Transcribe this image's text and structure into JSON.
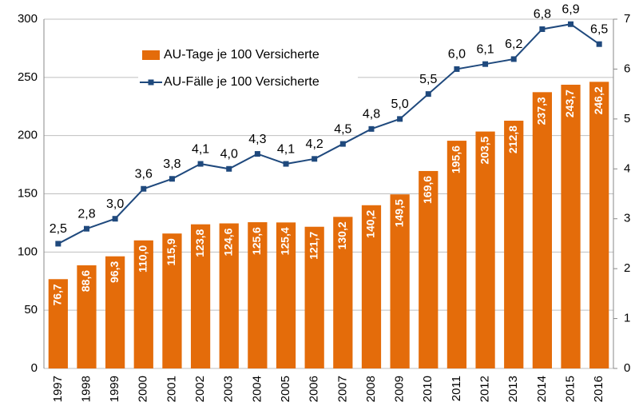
{
  "chart_data": {
    "type": "bar",
    "categories": [
      "1997",
      "1998",
      "1999",
      "2000",
      "2001",
      "2002",
      "2003",
      "2004",
      "2005",
      "2006",
      "2007",
      "2008",
      "2009",
      "2010",
      "2011",
      "2012",
      "2013",
      "2014",
      "2015",
      "2016"
    ],
    "series": [
      {
        "name": "AU-Tage je 100 Versicherte",
        "type": "bar",
        "axis": "y",
        "color": "#e46c0a",
        "values": [
          76.7,
          88.6,
          96.3,
          110.0,
          115.9,
          123.8,
          124.6,
          125.6,
          125.4,
          121.7,
          130.2,
          140.2,
          149.5,
          169.6,
          195.6,
          203.5,
          212.8,
          237.3,
          243.7,
          246.2
        ],
        "value_labels": [
          "76,7",
          "88,6",
          "96,3",
          "110,0",
          "115,9",
          "123,8",
          "124,6",
          "125,6",
          "125,4",
          "121,7",
          "130,2",
          "140,2",
          "149,5",
          "169,6",
          "195,6",
          "203,5",
          "212,8",
          "237,3",
          "243,7",
          "246,2"
        ]
      },
      {
        "name": "AU-Fälle je 100 Versicherte",
        "type": "line",
        "axis": "y2",
        "color": "#1f497d",
        "values": [
          2.5,
          2.8,
          3.0,
          3.6,
          3.8,
          4.1,
          4.0,
          4.3,
          4.1,
          4.2,
          4.5,
          4.8,
          5.0,
          5.5,
          6.0,
          6.1,
          6.2,
          6.8,
          6.9,
          6.5
        ],
        "value_labels": [
          "2,5",
          "2,8",
          "3,0",
          "3,6",
          "3,8",
          "4,1",
          "4,0",
          "4,3",
          "4,1",
          "4,2",
          "4,5",
          "4,8",
          "5,0",
          "5,5",
          "6,0",
          "6,1",
          "6,2",
          "6,8",
          "6,9",
          "6,5"
        ]
      }
    ],
    "ylim": [
      0,
      300
    ],
    "yticks": [
      0,
      50,
      100,
      150,
      200,
      250,
      300
    ],
    "y2lim": [
      0,
      7
    ],
    "y2ticks": [
      0,
      1,
      2,
      3,
      4,
      5,
      6,
      7
    ],
    "grid": true,
    "legend": "top-left"
  }
}
